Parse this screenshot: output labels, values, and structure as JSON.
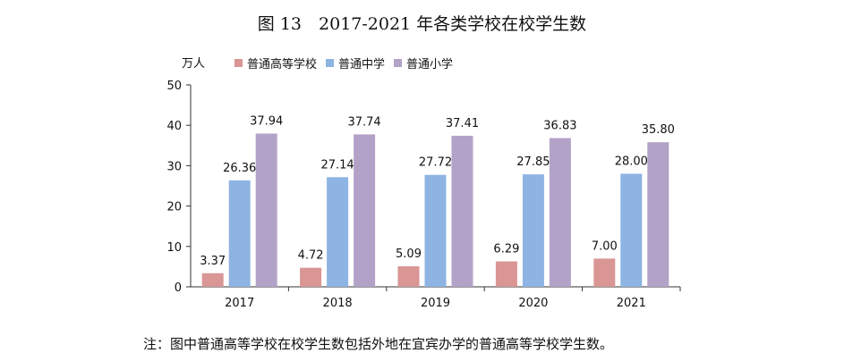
{
  "title": "图 13　2017-2021 年各类学校在校学生数",
  "note": "注：图中普通高等学校在校学生数包括外地在宜宾办学的普通高等学校学生数。",
  "chart_data": {
    "type": "bar",
    "title": "图 13　2017-2021 年各类学校在校学生数",
    "ylabel": "万人",
    "xlabel": "",
    "ylim": [
      0,
      50
    ],
    "yticks": [
      0,
      10,
      20,
      30,
      40,
      50
    ],
    "categories": [
      "2017",
      "2018",
      "2019",
      "2020",
      "2021"
    ],
    "legend_position": "top",
    "grid": false,
    "series": [
      {
        "name": "普通高等学校",
        "color": "#d99694",
        "values": [
          3.37,
          4.72,
          5.09,
          6.29,
          7.0
        ],
        "labels": [
          "3.37",
          "4.72",
          "5.09",
          "6.29",
          "7.00"
        ]
      },
      {
        "name": "普通中学",
        "color": "#8db4e2",
        "values": [
          26.36,
          27.14,
          27.72,
          27.85,
          28.0
        ],
        "labels": [
          "26.36",
          "27.14",
          "27.72",
          "27.85",
          "28.00"
        ]
      },
      {
        "name": "普通小学",
        "color": "#b3a2c7",
        "values": [
          37.94,
          37.74,
          37.41,
          36.83,
          35.8
        ],
        "labels": [
          "37.94",
          "37.74",
          "37.41",
          "36.83",
          "35.80"
        ]
      }
    ]
  }
}
